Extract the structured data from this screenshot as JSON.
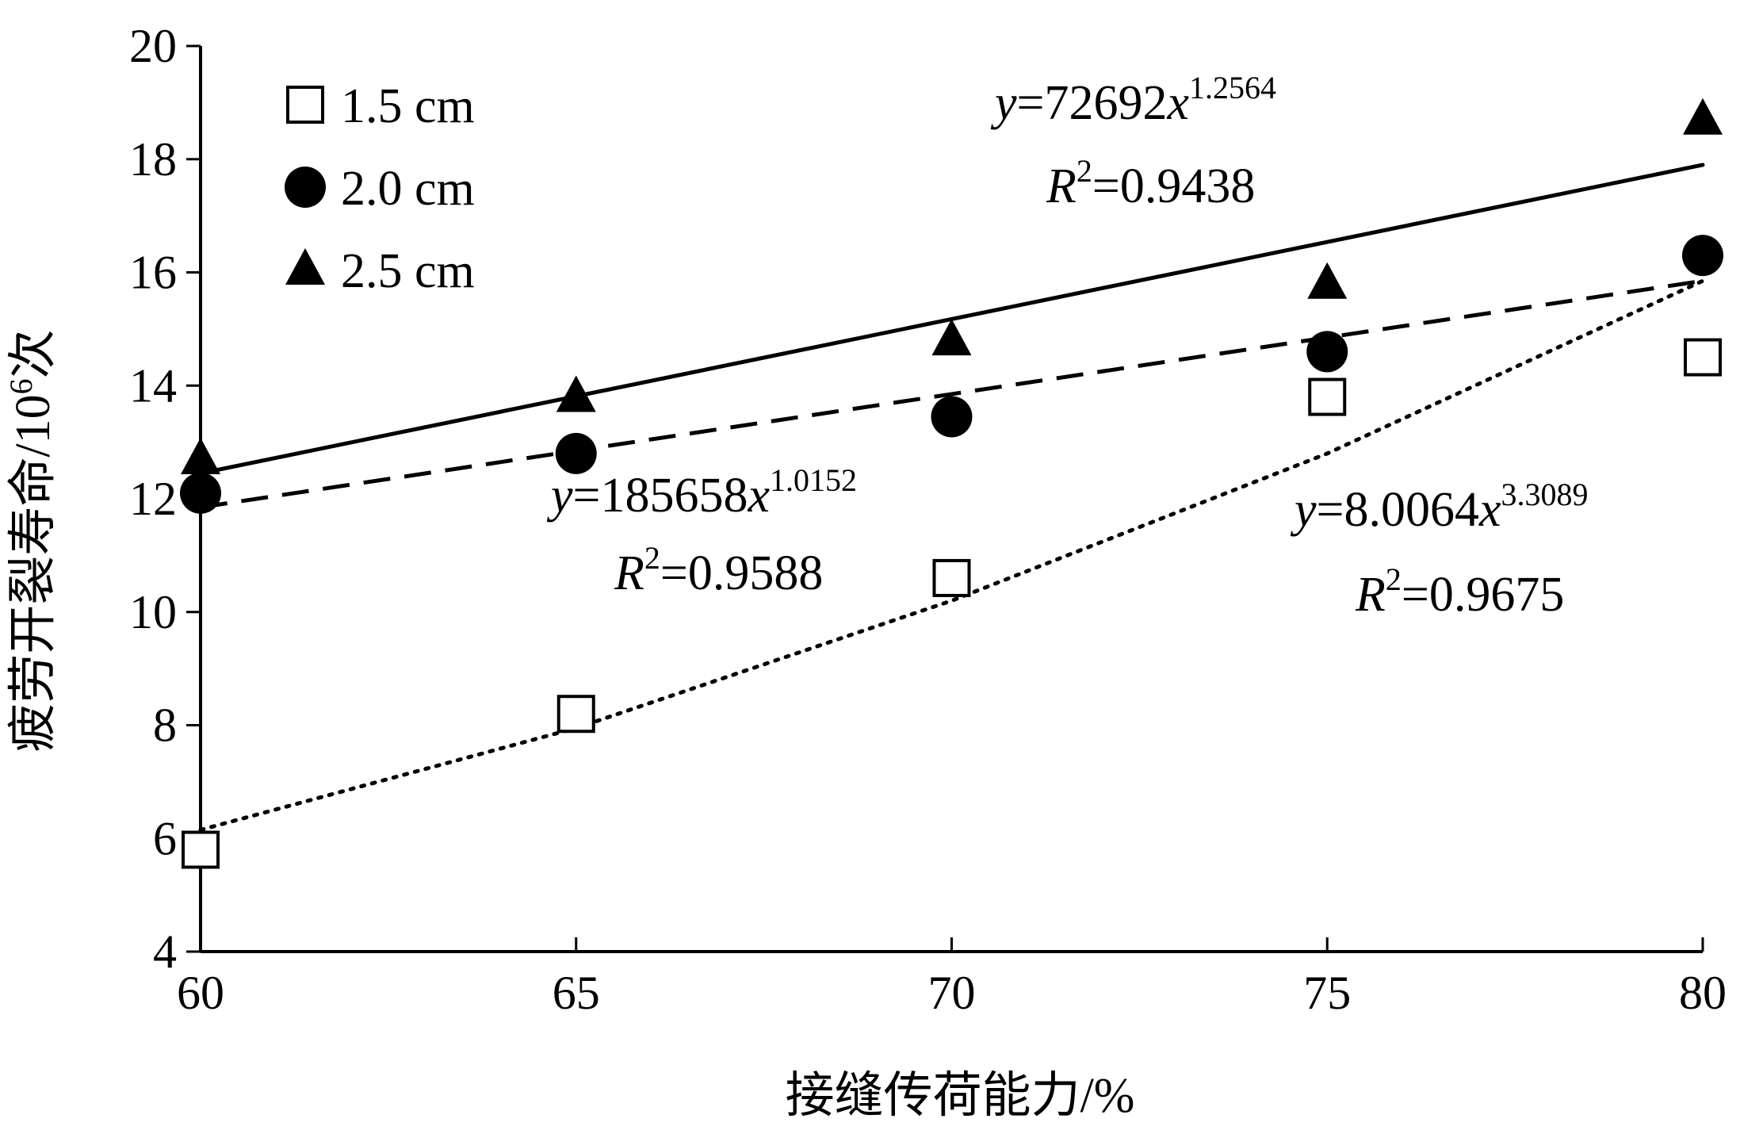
{
  "chart_data": {
    "type": "scatter",
    "xlabel": "接缝传荷能力/%",
    "ylabel_main": "疲劳开裂寿命/10",
    "ylabel_sup": "6",
    "ylabel_tail": "次",
    "xlim": [
      60,
      80
    ],
    "ylim": [
      4,
      20
    ],
    "x_ticks": [
      60,
      65,
      70,
      75,
      80
    ],
    "y_ticks": [
      4,
      6,
      8,
      10,
      12,
      14,
      16,
      18,
      20
    ],
    "grid": false,
    "legend_position": "top-left",
    "x": [
      60,
      65,
      70,
      75,
      80
    ],
    "series": [
      {
        "name": "1.5 cm",
        "marker": "square-open",
        "values": [
          5.8,
          8.2,
          10.6,
          13.8,
          14.5
        ],
        "trend": {
          "style": "dotted",
          "coef": 8.0064,
          "exp": 3.3089
        },
        "equation": {
          "y": "y",
          "eq": "=8.0064",
          "x": "x",
          "exp": "3.3089",
          "r": "R",
          "r_sup": "2",
          "r_val": "=0.9675"
        }
      },
      {
        "name": "2.0 cm",
        "marker": "circle-filled",
        "values": [
          12.1,
          12.8,
          13.45,
          14.6,
          16.3
        ],
        "trend": {
          "style": "dashed",
          "coef": 185658,
          "exp": 1.0152
        },
        "equation": {
          "y": "y",
          "eq": "=185658",
          "x": "x",
          "exp": "1.0152",
          "r": "R",
          "r_sup": "2",
          "r_val": "=0.9588"
        }
      },
      {
        "name": "2.5 cm",
        "marker": "triangle-filled",
        "values": [
          12.7,
          13.8,
          14.8,
          15.8,
          18.7
        ],
        "trend": {
          "style": "solid",
          "coef": 72692,
          "exp": 1.2564
        },
        "equation": {
          "y": "y",
          "eq": "=72692",
          "x": "x",
          "exp": "1.2564",
          "r": "R",
          "r_sup": "2",
          "r_val": "=0.9438"
        }
      }
    ]
  },
  "trend_endpoints": {
    "1.5 cm": [
      [
        60,
        6.15
      ],
      [
        65,
        7.95
      ],
      [
        70,
        10.2
      ],
      [
        75,
        12.8
      ],
      [
        80,
        15.85
      ]
    ],
    "2.0 cm": [
      [
        60,
        11.85
      ],
      [
        80,
        15.85
      ]
    ],
    "2.5 cm": [
      [
        60,
        12.45
      ],
      [
        80,
        17.9
      ]
    ]
  }
}
